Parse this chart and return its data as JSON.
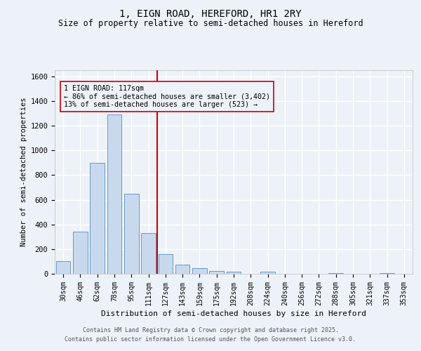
{
  "title1": "1, EIGN ROAD, HEREFORD, HR1 2RY",
  "title2": "Size of property relative to semi-detached houses in Hereford",
  "xlabel": "Distribution of semi-detached houses by size in Hereford",
  "ylabel": "Number of semi-detached properties",
  "categories": [
    "30sqm",
    "46sqm",
    "62sqm",
    "78sqm",
    "95sqm",
    "111sqm",
    "127sqm",
    "143sqm",
    "159sqm",
    "175sqm",
    "192sqm",
    "208sqm",
    "224sqm",
    "240sqm",
    "256sqm",
    "272sqm",
    "288sqm",
    "305sqm",
    "321sqm",
    "337sqm",
    "353sqm"
  ],
  "values": [
    100,
    340,
    900,
    1290,
    650,
    330,
    160,
    75,
    45,
    25,
    15,
    0,
    15,
    0,
    0,
    0,
    5,
    0,
    0,
    5,
    0
  ],
  "bar_color": "#c9d9ed",
  "bar_edge_color": "#6699cc",
  "vline_x": 5.5,
  "vline_color": "#cc0000",
  "annotation_text": "1 EIGN ROAD: 117sqm\n← 86% of semi-detached houses are smaller (3,402)\n13% of semi-detached houses are larger (523) →",
  "ylim": [
    0,
    1650
  ],
  "yticks": [
    0,
    200,
    400,
    600,
    800,
    1000,
    1200,
    1400,
    1600
  ],
  "background_color": "#edf2f9",
  "grid_color": "#ffffff",
  "footer1": "Contains HM Land Registry data © Crown copyright and database right 2025.",
  "footer2": "Contains public sector information licensed under the Open Government Licence v3.0."
}
